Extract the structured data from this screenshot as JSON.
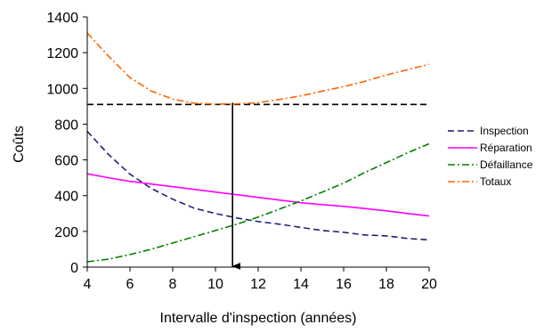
{
  "chart_data": {
    "type": "line",
    "xlabel": "Intervalle d'inspection (années)",
    "ylabel": "Coûts",
    "xlim": [
      4,
      20
    ],
    "ylim": [
      0,
      1400
    ],
    "xticks": [
      4,
      6,
      8,
      10,
      12,
      14,
      16,
      18,
      20
    ],
    "yticks": [
      0,
      200,
      400,
      600,
      800,
      1000,
      1200,
      1400
    ],
    "grid": false,
    "legend_position": "right",
    "series": [
      {
        "name": "Inspection",
        "color": "#1f1f7a",
        "dash": "dashed",
        "x": [
          4,
          5,
          6,
          7,
          8,
          9,
          10,
          11,
          12,
          13,
          14,
          15,
          16,
          17,
          18,
          19,
          20
        ],
        "y": [
          760,
          630,
          520,
          440,
          380,
          330,
          300,
          275,
          255,
          240,
          222,
          205,
          195,
          180,
          175,
          160,
          152
        ]
      },
      {
        "name": "Réparation",
        "color": "#ff00ff",
        "dash": "solid",
        "x": [
          4,
          5,
          6,
          7,
          8,
          9,
          10,
          11,
          12,
          13,
          14,
          15,
          16,
          17,
          18,
          19,
          20
        ],
        "y": [
          522,
          500,
          480,
          465,
          450,
          435,
          420,
          405,
          390,
          375,
          360,
          350,
          340,
          328,
          315,
          300,
          286
        ]
      },
      {
        "name": "Défaillance",
        "color": "#008000",
        "dash": "dashdot",
        "x": [
          4,
          5,
          6,
          7,
          8,
          9,
          10,
          11,
          12,
          13,
          14,
          15,
          16,
          17,
          18,
          19,
          20
        ],
        "y": [
          30,
          45,
          70,
          100,
          135,
          170,
          205,
          240,
          280,
          325,
          370,
          420,
          470,
          530,
          585,
          640,
          690
        ]
      },
      {
        "name": "Totaux",
        "color": "#ff6600",
        "dash": "dashdot",
        "x": [
          4,
          5,
          6,
          7,
          8,
          9,
          10,
          11,
          12,
          13,
          14,
          15,
          16,
          17,
          18,
          19,
          20
        ],
        "y": [
          1310,
          1180,
          1060,
          985,
          940,
          917,
          912,
          913,
          920,
          938,
          958,
          985,
          1010,
          1040,
          1075,
          1105,
          1135
        ]
      }
    ],
    "reference_line": {
      "y": 910,
      "x_from": 4,
      "x_to": 20,
      "style": "dashed",
      "color": "#000000"
    },
    "arrow": {
      "x": 10.8,
      "y_from": 920,
      "y_to": 0,
      "color": "#000000"
    }
  }
}
